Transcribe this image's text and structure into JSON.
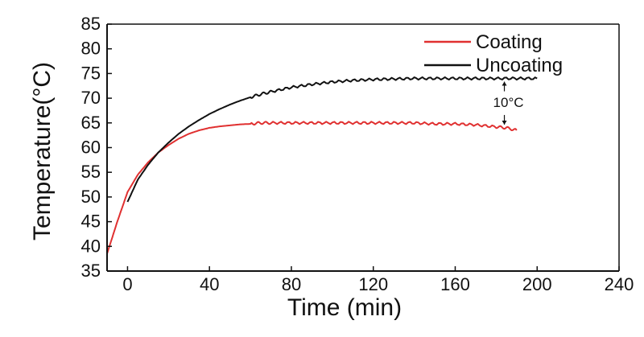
{
  "chart_data": {
    "type": "line",
    "title": "",
    "xlabel": "Time (min)",
    "ylabel": "Temperature(°C)",
    "xlim": [
      -10,
      240
    ],
    "ylim": [
      35,
      85
    ],
    "xticks": [
      0,
      40,
      80,
      120,
      160,
      200,
      240
    ],
    "yticks": [
      35,
      40,
      45,
      50,
      55,
      60,
      65,
      70,
      75,
      80,
      85
    ],
    "legend_position": "top-right",
    "series": [
      {
        "name": "Coating",
        "color": "#e03030",
        "x": [
          -10,
          -5,
          0,
          5,
          10,
          15,
          20,
          25,
          30,
          35,
          40,
          45,
          50,
          55,
          60,
          65,
          70,
          80,
          90,
          100,
          110,
          120,
          130,
          140,
          150,
          160,
          170,
          180,
          185,
          190
        ],
        "y": [
          38.5,
          45,
          51,
          54.5,
          57,
          59,
          60.5,
          61.8,
          62.8,
          63.5,
          64,
          64.3,
          64.5,
          64.7,
          64.8,
          65,
          65,
          65,
          65,
          65,
          65,
          65,
          65,
          65,
          64.8,
          64.8,
          64.6,
          64.2,
          64,
          63.5
        ]
      },
      {
        "name": "Uncoating",
        "color": "#111111",
        "x": [
          0,
          5,
          10,
          15,
          20,
          25,
          30,
          35,
          40,
          45,
          50,
          55,
          60,
          65,
          70,
          80,
          90,
          100,
          110,
          120,
          130,
          140,
          150,
          160,
          170,
          180,
          190,
          200
        ],
        "y": [
          49,
          53.5,
          56.5,
          59,
          61,
          62.8,
          64.3,
          65.6,
          66.8,
          67.8,
          68.7,
          69.5,
          70.2,
          70.8,
          71.3,
          72.2,
          72.8,
          73.3,
          73.6,
          73.8,
          73.9,
          74,
          74,
          74,
          74,
          74,
          74,
          74
        ]
      }
    ],
    "annotations": [
      {
        "text": "10°C",
        "x": 184,
        "y1": 64,
        "y2": 74
      }
    ]
  }
}
